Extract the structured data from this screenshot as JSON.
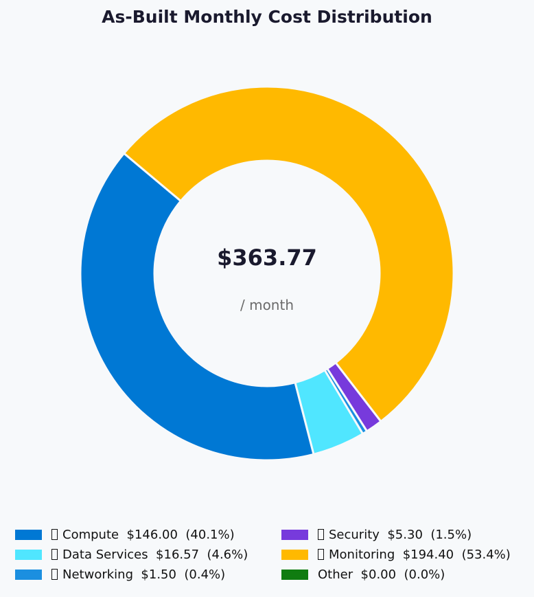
{
  "title": "As-Built Monthly Cost Distribution",
  "center": {
    "total": "$363.77",
    "subtitle": "/ month"
  },
  "legend": [
    {
      "label": "Compute  $146.00  (40.1%)",
      "color": "#0078d4",
      "has_glyph": true
    },
    {
      "label": "Data Services  $16.57  (4.6%)",
      "color": "#50e6ff",
      "has_glyph": true
    },
    {
      "label": "Networking  $1.50  (0.4%)",
      "color": "#1b8fe0",
      "has_glyph": true
    },
    {
      "label": "Security  $5.30  (1.5%)",
      "color": "#773adc",
      "has_glyph": true
    },
    {
      "label": "Monitoring  $194.40  (53.4%)",
      "color": "#ffb900",
      "has_glyph": true
    },
    {
      "label": "Other  $0.00  (0.0%)",
      "color": "#107c10",
      "has_glyph": false
    }
  ],
  "chart_data": {
    "type": "pie",
    "subtype": "donut",
    "title": "As-Built Monthly Cost Distribution",
    "center_label": "$363.77",
    "center_sublabel": "/ month",
    "categories": [
      "Compute",
      "Data Services",
      "Networking",
      "Security",
      "Other",
      "Monitoring"
    ],
    "values": [
      146.0,
      16.57,
      1.5,
      5.3,
      0.0,
      194.4
    ],
    "percentages": [
      40.1,
      4.6,
      0.4,
      1.5,
      0.0,
      53.4
    ],
    "colors": [
      "#0078d4",
      "#50e6ff",
      "#1b8fe0",
      "#773adc",
      "#107c10",
      "#ffb900"
    ],
    "total": 363.77,
    "start_angle_deg": 140,
    "direction": "counterclockwise",
    "legend_position": "bottom"
  }
}
